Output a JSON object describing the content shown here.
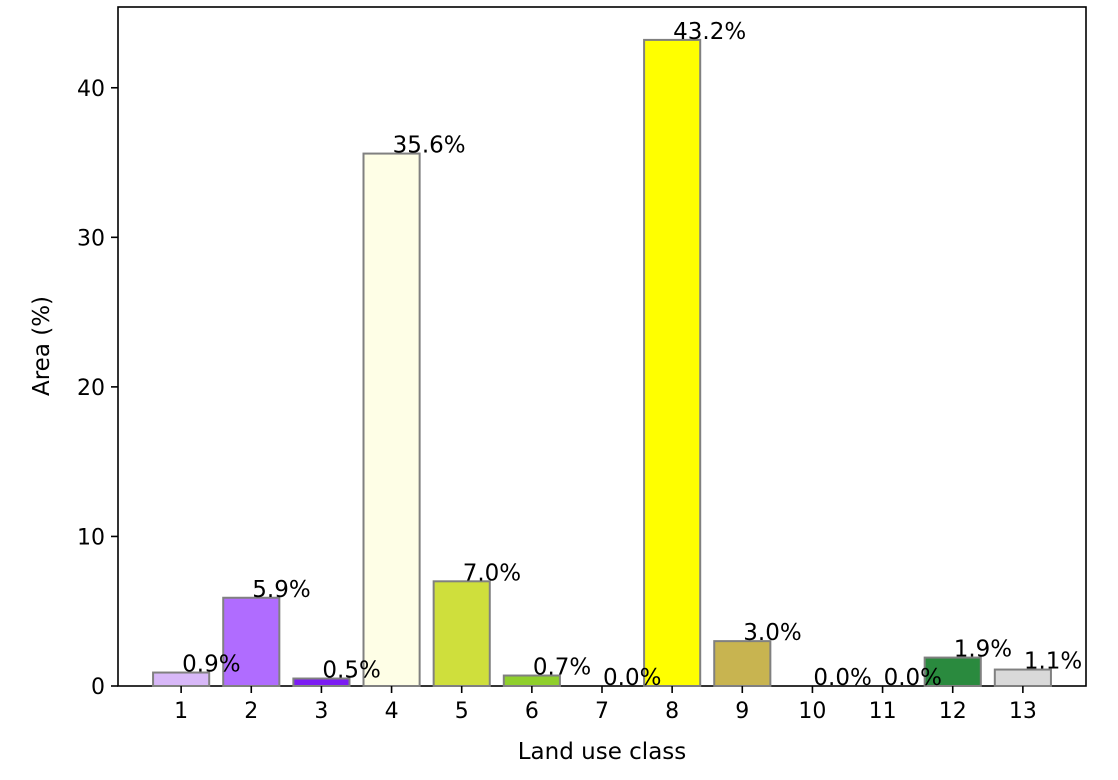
{
  "chart_data": {
    "type": "bar",
    "xlabel": "Land use class",
    "ylabel": "Area (%)",
    "categories": [
      "1",
      "2",
      "3",
      "4",
      "5",
      "6",
      "7",
      "8",
      "9",
      "10",
      "11",
      "12",
      "13"
    ],
    "values": [
      0.9,
      5.9,
      0.5,
      35.6,
      7.0,
      0.7,
      0.0,
      43.2,
      3.0,
      0.0,
      0.0,
      1.9,
      1.1
    ],
    "data_labels": [
      "0.9%",
      "5.9%",
      "0.5%",
      "35.6%",
      "7.0%",
      "0.7%",
      "0.0%",
      "43.2%",
      "3.0%",
      "0.0%",
      "0.0%",
      "1.9%",
      "1.1%"
    ],
    "colors": [
      "#d8b8f8",
      "#b06cff",
      "#7c1cf2",
      "#fefee6",
      "#cfdf3c",
      "#8fcf2c",
      "#ffffff",
      "#ffff00",
      "#c8b450",
      "#ffffff",
      "#ffffff",
      "#2a8a3e",
      "#d9d9d9"
    ],
    "bar_edge_color": "#808080",
    "y_ticks": [
      0,
      10,
      20,
      30,
      40
    ],
    "ylim": [
      0,
      45.4
    ],
    "xlim": [
      0.1,
      13.9
    ],
    "grid": false,
    "legend": "none"
  }
}
